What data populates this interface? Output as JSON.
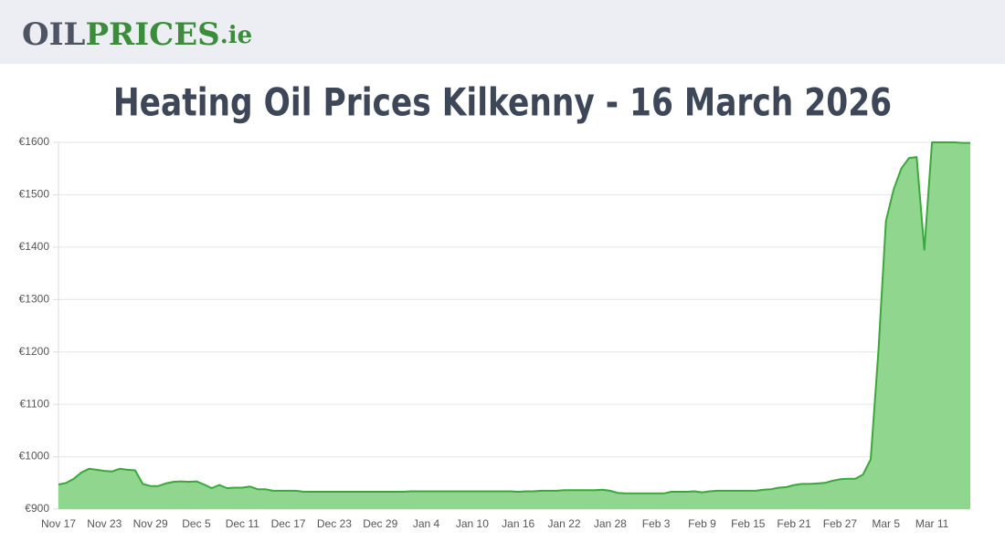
{
  "header": {
    "logo": [
      "OIL",
      "PRICES",
      ".ie"
    ]
  },
  "chart_data": {
    "type": "area",
    "title": "Heating Oil Prices Kilkenny - 16 March 2026",
    "line_color": "#3aa83a",
    "fill_color": "#90d68f",
    "grid": true,
    "ylim": [
      900,
      1600
    ],
    "yticks": [
      {
        "value": 900,
        "label": "€900"
      },
      {
        "value": 1000,
        "label": "€1000"
      },
      {
        "value": 1100,
        "label": "€1100"
      },
      {
        "value": 1200,
        "label": "€1200"
      },
      {
        "value": 1300,
        "label": "€1300"
      },
      {
        "value": 1400,
        "label": "€1400"
      },
      {
        "value": 1500,
        "label": "€1500"
      },
      {
        "value": 1600,
        "label": "€1600"
      }
    ],
    "categories": [
      "Nov 17",
      null,
      null,
      null,
      null,
      null,
      "Nov 23",
      null,
      null,
      null,
      null,
      null,
      "Nov 29",
      null,
      null,
      null,
      null,
      null,
      "Dec 5",
      null,
      null,
      null,
      null,
      null,
      "Dec 11",
      null,
      null,
      null,
      null,
      null,
      "Dec 17",
      null,
      null,
      null,
      null,
      null,
      "Dec 23",
      null,
      null,
      null,
      null,
      null,
      "Dec 29",
      null,
      null,
      null,
      null,
      null,
      "Jan 4",
      null,
      null,
      null,
      null,
      null,
      "Jan 10",
      null,
      null,
      null,
      null,
      null,
      "Jan 16",
      null,
      null,
      null,
      null,
      null,
      "Jan 22",
      null,
      null,
      null,
      null,
      null,
      "Jan 28",
      null,
      null,
      null,
      null,
      null,
      "Feb 3",
      null,
      null,
      null,
      null,
      null,
      "Feb 9",
      null,
      null,
      null,
      null,
      null,
      "Feb 15",
      null,
      null,
      null,
      null,
      null,
      "Feb 21",
      null,
      null,
      null,
      null,
      null,
      "Feb 27",
      null,
      null,
      null,
      null,
      null,
      "Mar 5",
      null,
      null,
      null,
      null,
      null,
      "Mar 11",
      null,
      null,
      null,
      null,
      null
    ],
    "values": [
      947,
      950,
      958,
      970,
      977,
      975,
      973,
      972,
      977,
      975,
      974,
      948,
      944,
      944,
      949,
      952,
      953,
      952,
      953,
      947,
      940,
      946,
      940,
      941,
      941,
      943,
      938,
      938,
      935,
      935,
      935,
      935,
      933,
      933,
      933,
      933,
      933,
      933,
      933,
      933,
      933,
      933,
      933,
      933,
      933,
      933,
      934,
      934,
      934,
      934,
      934,
      934,
      934,
      934,
      934,
      934,
      934,
      934,
      934,
      934,
      933,
      934,
      934,
      935,
      935,
      935,
      936,
      936,
      936,
      936,
      936,
      937,
      935,
      931,
      930,
      930,
      930,
      930,
      930,
      930,
      933,
      933,
      933,
      934,
      932,
      934,
      935,
      935,
      935,
      935,
      935,
      935,
      937,
      938,
      941,
      942,
      946,
      948,
      948,
      949,
      950,
      954,
      957,
      958,
      958,
      966,
      995,
      1200,
      1450,
      1510,
      1550,
      1570,
      1572,
      1395,
      1600,
      1600,
      1600,
      1600,
      1599,
      1599
    ]
  }
}
